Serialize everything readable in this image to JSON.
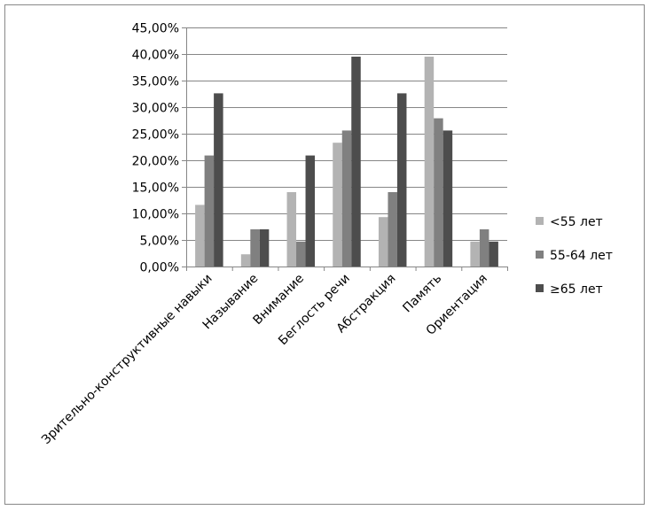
{
  "chart_data": {
    "type": "bar",
    "categories": [
      "Зрительно-конструктивные навыки",
      "Называние",
      "Внимание",
      "Беглость речи",
      "Абстракция",
      "Память",
      "Ориентация"
    ],
    "series": [
      {
        "name": "<55 лет",
        "color": "#b3b3b3",
        "values": [
          11.6,
          2.3,
          14.0,
          23.3,
          9.3,
          39.5,
          4.7
        ]
      },
      {
        "name": "55-64 лет",
        "color": "#808080",
        "values": [
          20.9,
          7.0,
          4.7,
          25.6,
          14.0,
          27.9,
          7.0
        ]
      },
      {
        "name": "≥65 лет",
        "color": "#4d4d4d",
        "values": [
          32.6,
          7.0,
          20.9,
          39.5,
          32.6,
          25.6,
          4.7
        ]
      }
    ],
    "yticks": [
      "0,00%",
      "5,00%",
      "10,00%",
      "15,00%",
      "20,00%",
      "25,00%",
      "30,00%",
      "35,00%",
      "40,00%",
      "45,00%"
    ],
    "ylim": [
      0,
      45
    ],
    "grid": true,
    "legend": "right",
    "title": "",
    "xlabel": "",
    "ylabel": ""
  }
}
